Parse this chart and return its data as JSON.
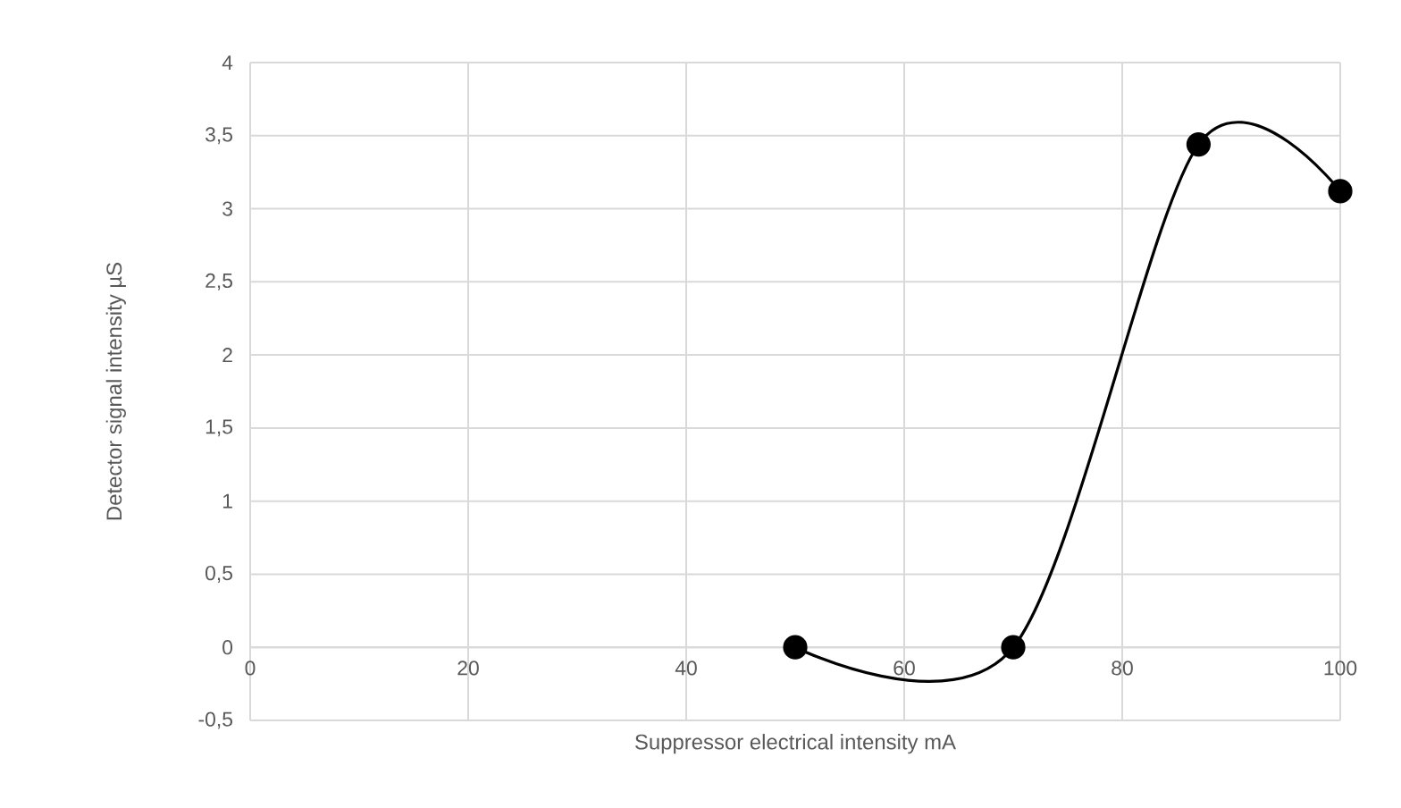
{
  "chart_data": {
    "type": "line",
    "xlabel": "Suppressor electrical intensity mA",
    "ylabel": "Detector signal intensity µS",
    "x": [
      50,
      70,
      87,
      100
    ],
    "series": [
      {
        "color": "#000000",
        "values": [
          0,
          0,
          3.44,
          3.12
        ]
      }
    ],
    "xlim": [
      0,
      100
    ],
    "xticks": [
      0,
      20,
      40,
      60,
      80,
      100
    ],
    "ylim": [
      -0.5,
      4
    ],
    "yticks": [
      {
        "value": -0.5,
        "label": "-0,5"
      },
      0,
      {
        "value": 0.5,
        "label": "0,5"
      },
      1,
      {
        "value": 1.5,
        "label": "1,5"
      },
      2,
      {
        "value": 2.5,
        "label": "2,5"
      },
      3,
      {
        "value": 3.5,
        "label": "3,5"
      },
      4
    ],
    "grid": true,
    "marker": "circle",
    "line_style": "solid"
  }
}
